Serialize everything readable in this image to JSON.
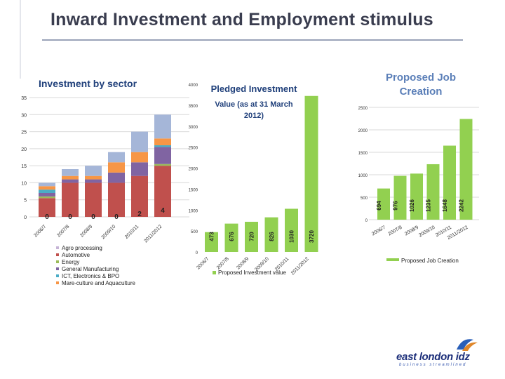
{
  "page": {
    "title": "Inward Investment and Employment stimulus"
  },
  "brand": {
    "logo_text": "east london idz",
    "tagline": "business streamlined"
  },
  "chart_data": [
    {
      "type": "bar",
      "stacked": true,
      "title": "Investment by sector",
      "categories": [
        "2006/7",
        "2007/8",
        "2008/9",
        "2009/10",
        "2010/11",
        "2011/2012"
      ],
      "ylim": [
        0,
        35
      ],
      "yticks": [
        0,
        5,
        10,
        15,
        20,
        25,
        30,
        35
      ],
      "grid": true,
      "legend_position": "bottom-left",
      "series": [
        {
          "name": "Agro processing",
          "color": "#c6b4d6",
          "values": [
            0,
            0,
            0,
            0,
            0,
            0
          ]
        },
        {
          "name": "Automotive",
          "color": "#c0504d",
          "values": [
            5.5,
            10,
            10,
            10,
            12,
            15
          ]
        },
        {
          "name": "Energy",
          "color": "#9bbb59",
          "values": [
            0.5,
            0,
            0,
            0,
            0,
            0.5
          ]
        },
        {
          "name": "General Manufacturing",
          "color": "#8064a2",
          "values": [
            1,
            1,
            1,
            3,
            4,
            5
          ]
        },
        {
          "name": "ICT, Electronics & BPO",
          "color": "#4bacc6",
          "values": [
            1,
            0,
            0,
            0,
            0,
            0.5
          ]
        },
        {
          "name": "Mare-culture and Aquaculture",
          "color": "#f79646",
          "values": [
            1,
            1,
            1,
            3,
            3,
            2
          ]
        },
        {
          "name": "",
          "color": "#a5b6d8",
          "values": [
            1,
            2,
            3,
            3,
            6,
            7
          ]
        }
      ],
      "data_labels": [
        "0",
        "0",
        "0",
        "0",
        "2",
        "4"
      ]
    },
    {
      "type": "bar",
      "title": "Pledged Investment",
      "subtitle": "Value (as at 31 March 2012)",
      "categories": [
        "2006/7",
        "2007/8",
        "2008/9",
        "2009/10",
        "2010/11",
        "2011/2012"
      ],
      "values": [
        473,
        676,
        720,
        826,
        1030,
        3720
      ],
      "ylim": [
        0,
        4000
      ],
      "yticks": [
        0,
        500,
        1000,
        1500,
        2000,
        2500,
        3000,
        3500,
        4000
      ],
      "series_name": "Proposed Investment value",
      "color": "#92d050",
      "grid": false,
      "legend_position": "bottom"
    },
    {
      "type": "bar",
      "title": "Proposed Job Creation",
      "categories": [
        "2006/7",
        "2007/8",
        "2008/9",
        "2009/10",
        "2010/11",
        "2011/2012"
      ],
      "values": [
        694,
        976,
        1026,
        1235,
        1648,
        2242
      ],
      "ylim": [
        0,
        2500
      ],
      "yticks": [
        0,
        500,
        1000,
        1500,
        2000,
        2500
      ],
      "series_name": "Proposed Job Creation",
      "color": "#92d050",
      "title_color": "#5b7fb8",
      "grid": true,
      "legend_position": "bottom"
    }
  ]
}
